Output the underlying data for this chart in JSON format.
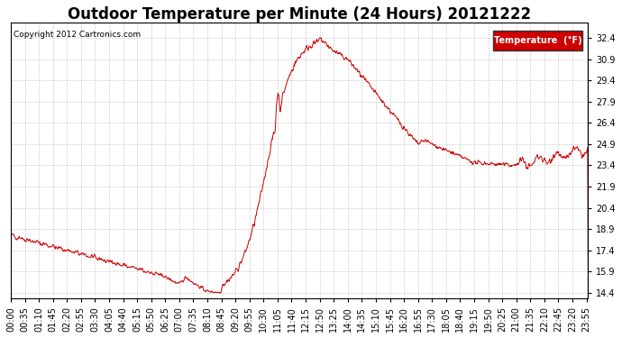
{
  "title": "Outdoor Temperature per Minute (24 Hours) 20121222",
  "copyright": "Copyright 2012 Cartronics.com",
  "legend_label": "Temperature  (°F)",
  "line_color": "#cc0000",
  "background_color": "#ffffff",
  "grid_color": "#999999",
  "yticks": [
    14.4,
    15.9,
    17.4,
    18.9,
    20.4,
    21.9,
    23.4,
    24.9,
    26.4,
    27.9,
    29.4,
    30.9,
    32.4
  ],
  "ylim": [
    14.0,
    33.5
  ],
  "xlim": [
    0,
    1439
  ],
  "title_fontsize": 12,
  "axis_fontsize": 7
}
